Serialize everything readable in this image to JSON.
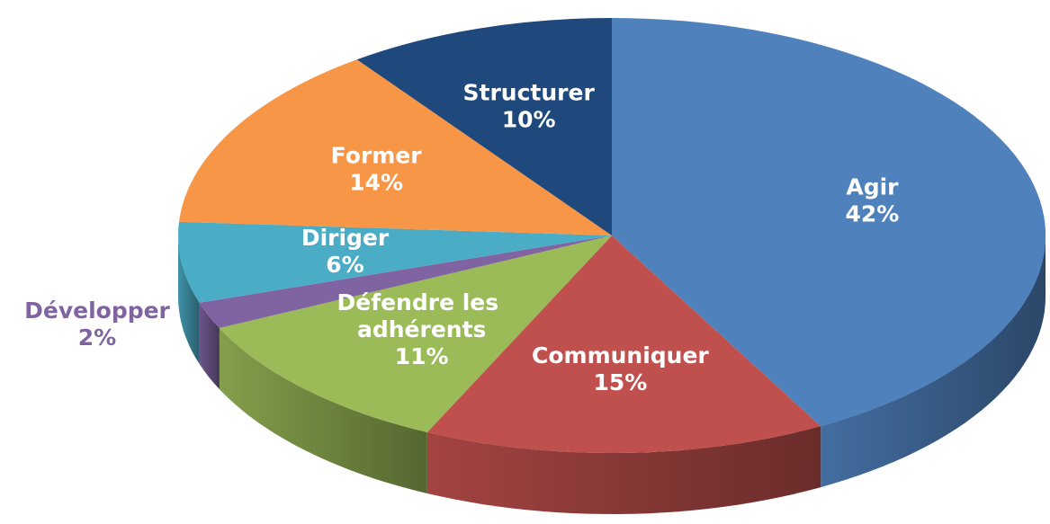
{
  "chart_data": {
    "type": "pie",
    "categories": [
      "Agir",
      "Communiquer",
      "Défendre les adhérents",
      "Développer",
      "Diriger",
      "Former",
      "Structurer"
    ],
    "values": [
      42,
      15,
      11,
      2,
      6,
      14,
      10
    ],
    "value_labels": [
      "42%",
      "15%",
      "11%",
      "2%",
      "6%",
      "14%",
      "10%"
    ],
    "colors": [
      "#4f81bd",
      "#c0504d",
      "#9bbb59",
      "#8064a2",
      "#4bacc6",
      "#f79646",
      "#1f497d"
    ]
  }
}
